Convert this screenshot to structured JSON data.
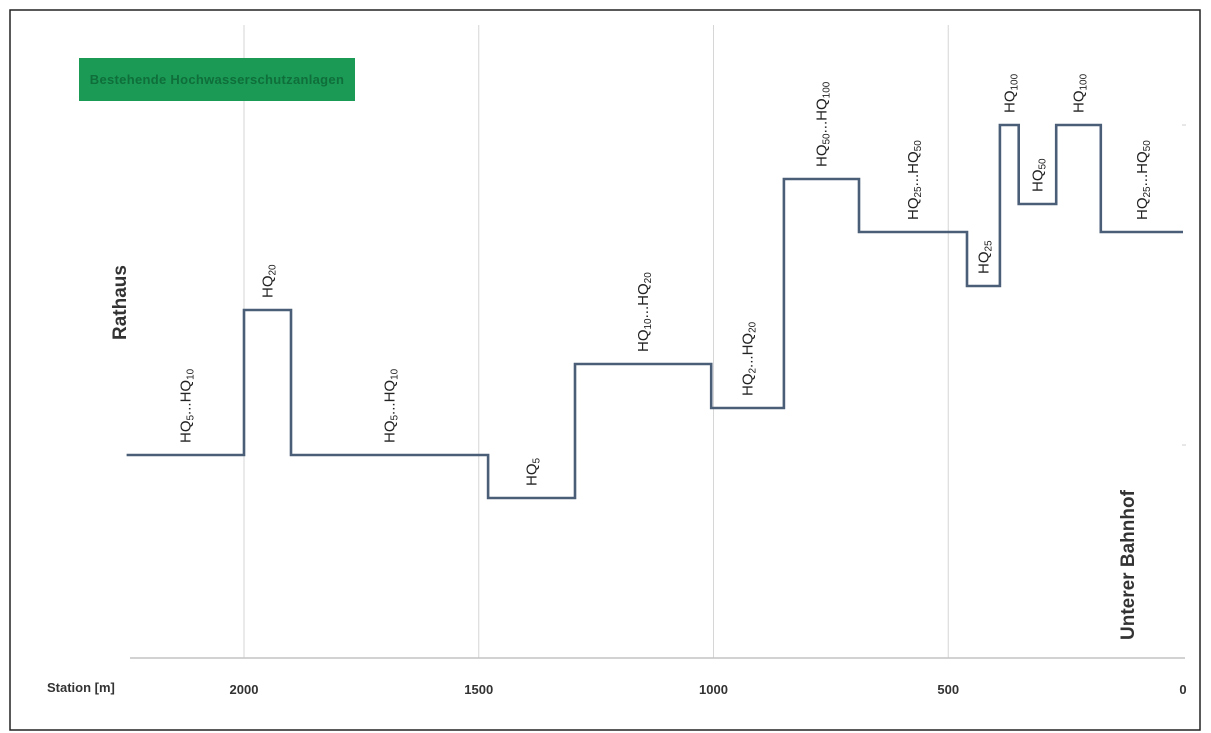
{
  "chart_data": {
    "type": "line",
    "step": true,
    "xlabel": "Station [m]",
    "xlim": [
      2250,
      0
    ],
    "x_ticks": [
      2000,
      1500,
      1000,
      500,
      0
    ],
    "x_tick_labels": [
      "2000",
      "1500",
      "1000",
      "500",
      "0"
    ],
    "grid": true,
    "line_color": "#4a5e78",
    "legend": {
      "label": "Bestehende Hochwasserschutzanlagen",
      "color": "#1a9a55",
      "placement": "top-left"
    },
    "landmarks": [
      {
        "label": "Rathaus",
        "position": "left"
      },
      {
        "label": "Unterer Bahnhof",
        "position": "right"
      }
    ],
    "segments": [
      {
        "from": 2250,
        "to": 2000,
        "level": "HQ5...HQ10",
        "label_main": "HQ",
        "parts": [
          {
            "t": "5",
            "sub": true
          },
          {
            "t": "...HQ",
            "sub": false
          },
          {
            "t": "10",
            "sub": true
          }
        ],
        "rank": 2
      },
      {
        "from": 2000,
        "to": 1900,
        "level": "HQ20",
        "label_main": "HQ",
        "parts": [
          {
            "t": "20",
            "sub": true
          }
        ],
        "rank": 5
      },
      {
        "from": 1900,
        "to": 1480,
        "level": "HQ5...HQ10",
        "label_main": "HQ",
        "parts": [
          {
            "t": "5",
            "sub": true
          },
          {
            "t": "...HQ",
            "sub": false
          },
          {
            "t": "10",
            "sub": true
          }
        ],
        "rank": 2
      },
      {
        "from": 1480,
        "to": 1295,
        "level": "HQ5",
        "label_main": "HQ",
        "parts": [
          {
            "t": "5",
            "sub": true
          }
        ],
        "rank": 1
      },
      {
        "from": 1295,
        "to": 1005,
        "level": "HQ10...HQ20",
        "label_main": "HQ",
        "parts": [
          {
            "t": "10",
            "sub": true
          },
          {
            "t": "...HQ",
            "sub": false
          },
          {
            "t": "20",
            "sub": true
          }
        ],
        "rank": 4
      },
      {
        "from": 1005,
        "to": 850,
        "level": "HQ2...HQ20",
        "label_main": "HQ",
        "parts": [
          {
            "t": "2",
            "sub": true
          },
          {
            "t": "...HQ",
            "sub": false
          },
          {
            "t": "20",
            "sub": true
          }
        ],
        "rank": 3
      },
      {
        "from": 850,
        "to": 690,
        "level": "HQ50...HQ100",
        "label_main": "HQ",
        "parts": [
          {
            "t": "50",
            "sub": true
          },
          {
            "t": "...HQ",
            "sub": false
          },
          {
            "t": "100",
            "sub": true
          }
        ],
        "rank": 9
      },
      {
        "from": 690,
        "to": 460,
        "level": "HQ25...HQ50",
        "label_main": "HQ",
        "parts": [
          {
            "t": "25",
            "sub": true
          },
          {
            "t": "...HQ",
            "sub": false
          },
          {
            "t": "50",
            "sub": true
          }
        ],
        "rank": 7
      },
      {
        "from": 460,
        "to": 390,
        "level": "HQ25",
        "label_main": "HQ",
        "parts": [
          {
            "t": "25",
            "sub": true
          }
        ],
        "rank": 6
      },
      {
        "from": 390,
        "to": 350,
        "level": "HQ100",
        "label_main": "HQ",
        "parts": [
          {
            "t": "100",
            "sub": true
          }
        ],
        "rank": 10
      },
      {
        "from": 350,
        "to": 270,
        "level": "HQ50",
        "label_main": "HQ",
        "parts": [
          {
            "t": "50",
            "sub": true
          }
        ],
        "rank": 8
      },
      {
        "from": 270,
        "to": 175,
        "level": "HQ100",
        "label_main": "HQ",
        "parts": [
          {
            "t": "100",
            "sub": true
          }
        ],
        "rank": 10
      },
      {
        "from": 175,
        "to": 0,
        "level": "HQ25...HQ50",
        "label_main": "HQ",
        "parts": [
          {
            "t": "25",
            "sub": true
          },
          {
            "t": "...HQ",
            "sub": false
          },
          {
            "t": "50",
            "sub": true
          }
        ],
        "rank": 7
      }
    ]
  }
}
